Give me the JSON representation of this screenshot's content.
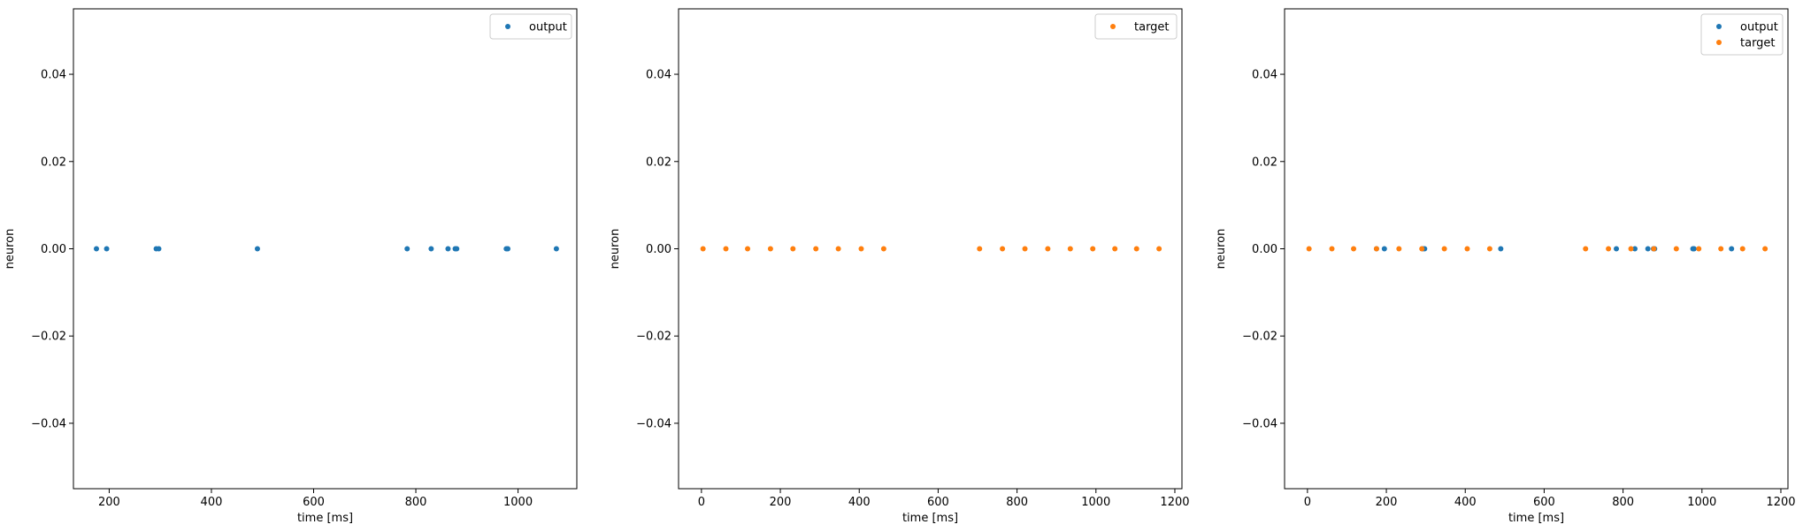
{
  "chart_data": [
    {
      "type": "scatter",
      "xlabel": "time [ms]",
      "ylabel": "neuron",
      "xlim": [
        130,
        1115
      ],
      "ylim": [
        -0.055,
        0.055
      ],
      "xticks": [
        200,
        400,
        600,
        800,
        1000
      ],
      "yticks": [
        -0.04,
        -0.02,
        0.0,
        0.02,
        0.04
      ],
      "ytick_labels": [
        "−0.04",
        "−0.02",
        "0.00",
        "0.02",
        "0.04"
      ],
      "legend_position": "upper-right",
      "series": [
        {
          "name": "output",
          "color": "#1f77b4",
          "x": [
            175,
            195,
            292,
            297,
            490,
            783,
            830,
            863,
            877,
            880,
            977,
            980,
            1075
          ],
          "y": [
            0,
            0,
            0,
            0,
            0,
            0,
            0,
            0,
            0,
            0,
            0,
            0,
            0
          ]
        }
      ]
    },
    {
      "type": "scatter",
      "xlabel": "time [ms]",
      "ylabel": "neuron",
      "xlim": [
        -58,
        1218
      ],
      "ylim": [
        -0.055,
        0.055
      ],
      "xticks": [
        0,
        200,
        400,
        600,
        800,
        1000,
        1200
      ],
      "yticks": [
        -0.04,
        -0.02,
        0.0,
        0.02,
        0.04
      ],
      "ytick_labels": [
        "−0.04",
        "−0.02",
        "0.00",
        "0.02",
        "0.04"
      ],
      "legend_position": "upper-right",
      "series": [
        {
          "name": "target",
          "color": "#ff7f0e",
          "x": [
            4,
            62,
            117,
            175,
            232,
            290,
            347,
            405,
            462,
            705,
            763,
            820,
            878,
            935,
            992,
            1048,
            1103,
            1160
          ],
          "y": [
            0,
            0,
            0,
            0,
            0,
            0,
            0,
            0,
            0,
            0,
            0,
            0,
            0,
            0,
            0,
            0,
            0,
            0
          ]
        }
      ]
    },
    {
      "type": "scatter",
      "xlabel": "time [ms]",
      "ylabel": "neuron",
      "xlim": [
        -58,
        1218
      ],
      "ylim": [
        -0.055,
        0.055
      ],
      "xticks": [
        0,
        200,
        400,
        600,
        800,
        1000,
        1200
      ],
      "yticks": [
        -0.04,
        -0.02,
        0.0,
        0.02,
        0.04
      ],
      "ytick_labels": [
        "−0.04",
        "−0.02",
        "0.00",
        "0.02",
        "0.04"
      ],
      "legend_position": "upper-right",
      "series": [
        {
          "name": "output",
          "color": "#1f77b4",
          "x": [
            175,
            195,
            292,
            297,
            490,
            783,
            830,
            863,
            877,
            880,
            977,
            980,
            1075
          ],
          "y": [
            0,
            0,
            0,
            0,
            0,
            0,
            0,
            0,
            0,
            0,
            0,
            0,
            0
          ]
        },
        {
          "name": "target",
          "color": "#ff7f0e",
          "x": [
            4,
            62,
            117,
            175,
            232,
            290,
            347,
            405,
            462,
            705,
            763,
            820,
            878,
            935,
            992,
            1048,
            1103,
            1160
          ],
          "y": [
            0,
            0,
            0,
            0,
            0,
            0,
            0,
            0,
            0,
            0,
            0,
            0,
            0,
            0,
            0,
            0,
            0,
            0
          ]
        }
      ]
    }
  ]
}
